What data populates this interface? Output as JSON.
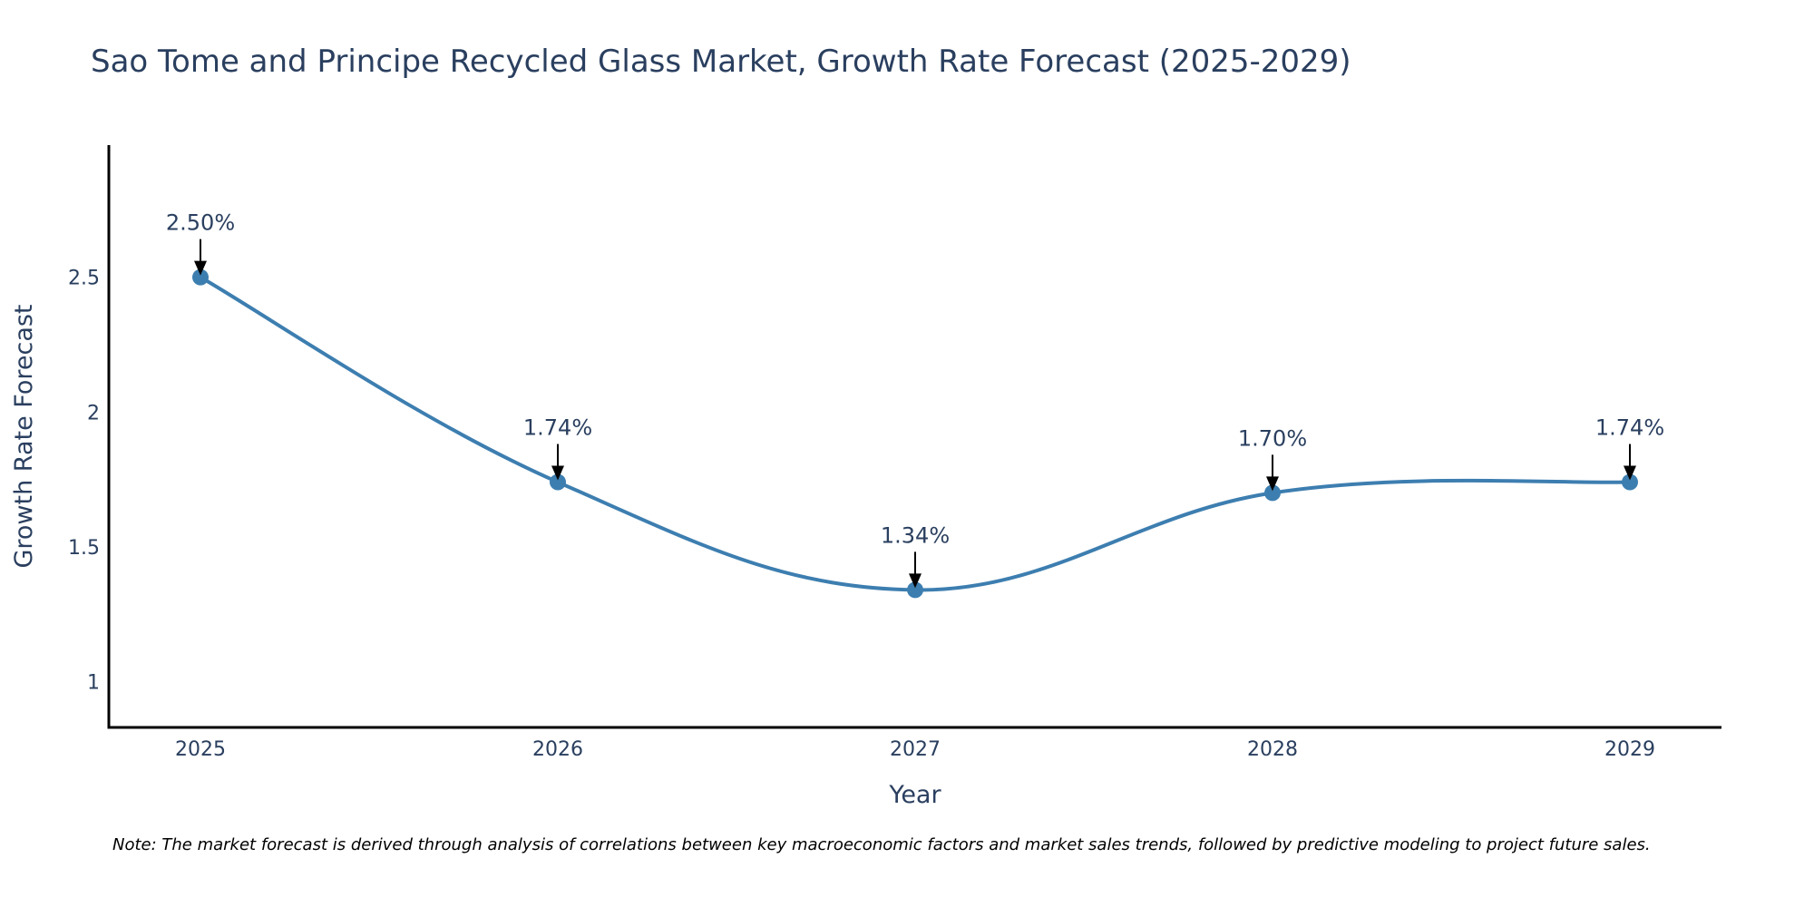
{
  "chart_data": {
    "type": "line",
    "title": "Sao Tome and Principe Recycled Glass Market, Growth Rate Forecast (2025-2029)",
    "xlabel": "Year",
    "ylabel": "Growth Rate Forecast",
    "categories": [
      "2025",
      "2026",
      "2027",
      "2028",
      "2029"
    ],
    "series": [
      {
        "name": "Growth Rate Forecast",
        "values": [
          2.5,
          1.74,
          1.34,
          1.7,
          1.74
        ],
        "labels": [
          "2.50%",
          "1.74%",
          "1.34%",
          "1.70%",
          "1.74%"
        ]
      }
    ],
    "ylim": [
      0.83,
      2.99
    ],
    "yticks": [
      1,
      1.5,
      2,
      2.5
    ],
    "ytick_labels": [
      "1",
      "1.5",
      "2",
      "2.5"
    ],
    "grid": false,
    "line_shape": "spline",
    "color": "#3d7eb0",
    "note": "Note: The market forecast is derived through analysis of correlations between key macroeconomic factors and market sales trends, followed by predictive modeling to project future sales."
  }
}
